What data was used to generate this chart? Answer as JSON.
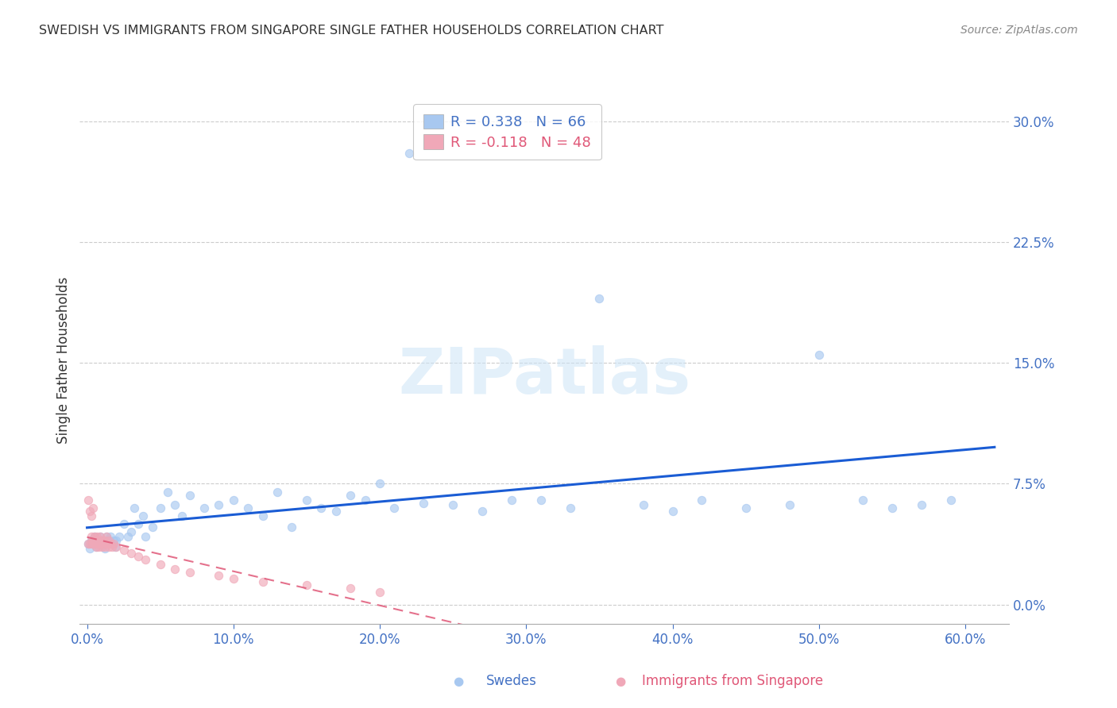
{
  "title": "SWEDISH VS IMMIGRANTS FROM SINGAPORE SINGLE FATHER HOUSEHOLDS CORRELATION CHART",
  "source": "Source: ZipAtlas.com",
  "ylabel": "Single Father Households",
  "xlabel_ticks": [
    "0.0%",
    "10.0%",
    "20.0%",
    "30.0%",
    "40.0%",
    "50.0%",
    "60.0%"
  ],
  "xlabel_vals": [
    0.0,
    0.1,
    0.2,
    0.3,
    0.4,
    0.5,
    0.6
  ],
  "ytick_labels": [
    "0.0%",
    "7.5%",
    "15.0%",
    "22.5%",
    "30.0%"
  ],
  "ytick_vals": [
    0.0,
    0.075,
    0.15,
    0.225,
    0.3
  ],
  "xlim": [
    -0.005,
    0.63
  ],
  "ylim": [
    -0.012,
    0.315
  ],
  "swedes_color": "#a8c8f0",
  "singapore_color": "#f0a8b8",
  "trend_blue": "#1a5cd4",
  "trend_pink": "#e05878",
  "swedes_x": [
    0.001,
    0.002,
    0.003,
    0.004,
    0.005,
    0.006,
    0.007,
    0.008,
    0.009,
    0.01,
    0.011,
    0.012,
    0.013,
    0.014,
    0.015,
    0.016,
    0.017,
    0.018,
    0.019,
    0.02,
    0.022,
    0.025,
    0.028,
    0.03,
    0.032,
    0.035,
    0.038,
    0.04,
    0.045,
    0.05,
    0.055,
    0.06,
    0.065,
    0.07,
    0.08,
    0.09,
    0.1,
    0.11,
    0.12,
    0.13,
    0.14,
    0.15,
    0.16,
    0.17,
    0.18,
    0.19,
    0.2,
    0.21,
    0.22,
    0.23,
    0.25,
    0.27,
    0.29,
    0.31,
    0.33,
    0.35,
    0.38,
    0.4,
    0.42,
    0.45,
    0.48,
    0.5,
    0.53,
    0.55,
    0.57,
    0.59
  ],
  "swedes_y": [
    0.038,
    0.035,
    0.04,
    0.038,
    0.042,
    0.036,
    0.04,
    0.038,
    0.042,
    0.037,
    0.04,
    0.035,
    0.042,
    0.038,
    0.04,
    0.042,
    0.038,
    0.04,
    0.036,
    0.04,
    0.042,
    0.05,
    0.042,
    0.045,
    0.06,
    0.05,
    0.055,
    0.042,
    0.048,
    0.06,
    0.07,
    0.062,
    0.055,
    0.068,
    0.06,
    0.062,
    0.065,
    0.06,
    0.055,
    0.07,
    0.048,
    0.065,
    0.06,
    0.058,
    0.068,
    0.065,
    0.075,
    0.06,
    0.28,
    0.063,
    0.062,
    0.058,
    0.065,
    0.065,
    0.06,
    0.19,
    0.062,
    0.058,
    0.065,
    0.06,
    0.062,
    0.155,
    0.065,
    0.06,
    0.062,
    0.065
  ],
  "singapore_x": [
    0.001,
    0.001,
    0.002,
    0.002,
    0.003,
    0.003,
    0.003,
    0.004,
    0.004,
    0.004,
    0.005,
    0.005,
    0.006,
    0.006,
    0.006,
    0.007,
    0.007,
    0.008,
    0.008,
    0.009,
    0.009,
    0.01,
    0.01,
    0.011,
    0.012,
    0.012,
    0.013,
    0.013,
    0.014,
    0.015,
    0.015,
    0.016,
    0.017,
    0.018,
    0.02,
    0.025,
    0.03,
    0.035,
    0.04,
    0.05,
    0.06,
    0.07,
    0.09,
    0.1,
    0.12,
    0.15,
    0.18,
    0.2
  ],
  "singapore_y": [
    0.065,
    0.038,
    0.058,
    0.038,
    0.042,
    0.038,
    0.055,
    0.04,
    0.038,
    0.06,
    0.038,
    0.042,
    0.036,
    0.04,
    0.038,
    0.042,
    0.038,
    0.036,
    0.04,
    0.042,
    0.038,
    0.04,
    0.036,
    0.038,
    0.04,
    0.036,
    0.038,
    0.042,
    0.038,
    0.04,
    0.036,
    0.038,
    0.036,
    0.038,
    0.036,
    0.034,
    0.032,
    0.03,
    0.028,
    0.025,
    0.022,
    0.02,
    0.018,
    0.016,
    0.014,
    0.012,
    0.01,
    0.008
  ]
}
